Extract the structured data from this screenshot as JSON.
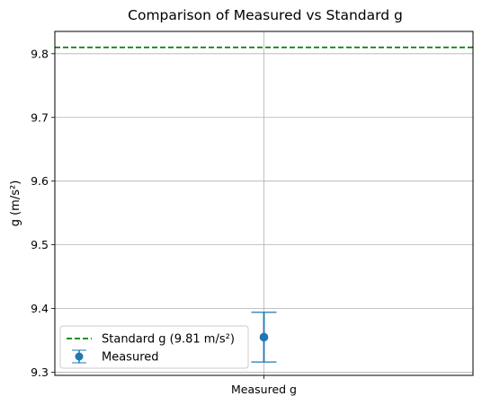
{
  "chart_data": {
    "type": "scatter",
    "title": "Comparison of Measured vs Standard g",
    "xlabel": "",
    "ylabel": "g (m/s²)",
    "categories": [
      "Measured g"
    ],
    "ylim": [
      9.295,
      9.835
    ],
    "yticks": [
      9.3,
      9.4,
      9.5,
      9.6,
      9.7,
      9.8
    ],
    "ytick_labels": [
      "9.3",
      "9.4",
      "9.5",
      "9.6",
      "9.7",
      "9.8"
    ],
    "grid": true,
    "legend_position": "lower-left",
    "series": [
      {
        "name": "Measured",
        "kind": "errorbar",
        "category": "Measured g",
        "value": 9.355,
        "error": 0.039,
        "color": "#1f77b4"
      }
    ],
    "reference_lines": [
      {
        "name": "Standard g (9.81 m/s²)",
        "value": 9.81,
        "style": "dashed",
        "color": "#008000"
      }
    ]
  }
}
